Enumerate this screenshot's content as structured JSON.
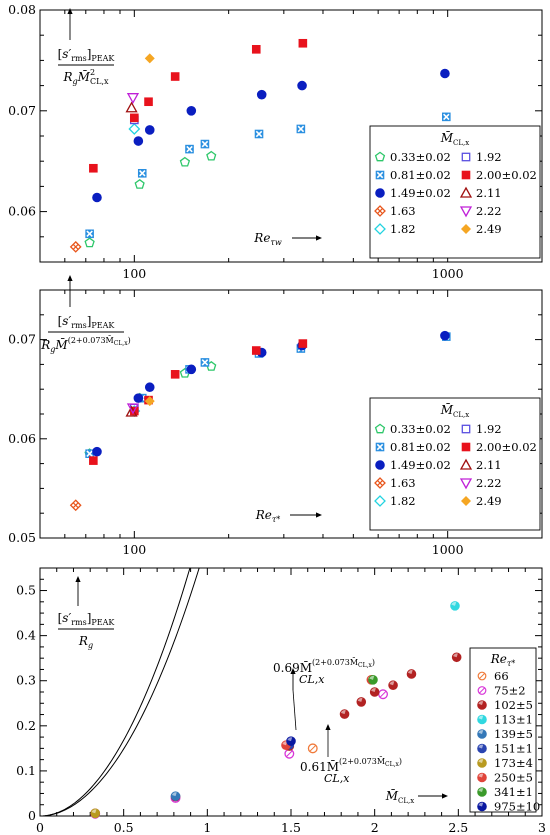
{
  "chart_data": [
    {
      "type": "scatter",
      "xscale": "log",
      "xlim": [
        50,
        2000
      ],
      "ylim": [
        0.055,
        0.08
      ],
      "xticks": [
        "100",
        "1000"
      ],
      "yticks": [
        "0.06",
        "0.07",
        "0.08"
      ],
      "ylabel": [
        "[s′rms]PEAK",
        "R",
        "g",
        "M̄",
        "2",
        "CL,x"
      ],
      "xlabel": [
        "Re",
        "τw"
      ],
      "legend_title": [
        "M̄",
        "CL,x"
      ],
      "series": [
        {
          "name": "0.33±0.02",
          "marker": "pentagon",
          "color": "#2ec76a",
          "x": [
            72,
            104,
            145,
            176
          ],
          "y": [
            0.0569,
            0.0627,
            0.0649,
            0.0655
          ]
        },
        {
          "name": "0.81±0.02",
          "marker": "square-cross",
          "color": "#2a8fe0",
          "x": [
            72,
            106,
            150,
            168,
            250,
            340,
            990
          ],
          "y": [
            0.0578,
            0.0638,
            0.0662,
            0.0667,
            0.0677,
            0.0682,
            0.0694
          ]
        },
        {
          "name": "1.49±0.02",
          "marker": "circle",
          "color": "#0a1ec0",
          "x": [
            76,
            103,
            112,
            152,
            255,
            343,
            980
          ],
          "y": [
            0.0614,
            0.067,
            0.0681,
            0.07,
            0.0716,
            0.0725,
            0.0737
          ]
        },
        {
          "name": "1.63",
          "marker": "diamond-cross",
          "color": "#e8561c",
          "x": [
            65
          ],
          "y": [
            0.0565
          ]
        },
        {
          "name": "1.82",
          "marker": "diamond-open",
          "color": "#22d3e0",
          "x": [
            100
          ],
          "y": [
            0.0682
          ]
        },
        {
          "name": "1.92",
          "marker": "square-open",
          "color": "#5a4fe0",
          "x": [
            100
          ],
          "y": [
            0.0691
          ]
        },
        {
          "name": "2.00±0.02",
          "marker": "square",
          "color": "#e8121c",
          "x": [
            74,
            100,
            111,
            135,
            245,
            345
          ],
          "y": [
            0.0643,
            0.0693,
            0.0709,
            0.0734,
            0.0761,
            0.0767
          ]
        },
        {
          "name": "2.11",
          "marker": "triangle-up",
          "color": "#a01010",
          "x": [
            98
          ],
          "y": [
            0.0703
          ]
        },
        {
          "name": "2.22",
          "marker": "triangle-down",
          "color": "#c020d8",
          "x": [
            99
          ],
          "y": [
            0.0713
          ]
        },
        {
          "name": "2.49",
          "marker": "diamond",
          "color": "#f5a623",
          "x": [
            112
          ],
          "y": [
            0.0752
          ]
        }
      ]
    },
    {
      "type": "scatter",
      "xscale": "log",
      "xlim": [
        50,
        2000
      ],
      "ylim": [
        0.05,
        0.075
      ],
      "xticks": [
        "100",
        "1000"
      ],
      "yticks": [
        "0.05",
        "0.06",
        "0.07"
      ],
      "ylabel": [
        "[s′rms]PEAK",
        "R",
        "g",
        "M̄",
        "(2+0.073M̄",
        "CL,x",
        ")"
      ],
      "xlabel": [
        "Re",
        "τ*"
      ],
      "legend_title": [
        "M̄",
        "CL,x"
      ],
      "series": [
        {
          "name": "0.33±0.02",
          "marker": "pentagon",
          "color": "#2ec76a",
          "x": [
            72,
            104,
            145,
            176
          ],
          "y": [
            0.0585,
            0.0641,
            0.0666,
            0.0673
          ]
        },
        {
          "name": "0.81±0.02",
          "marker": "square-cross",
          "color": "#2a8fe0",
          "x": [
            72,
            106,
            150,
            168,
            250,
            340,
            990
          ],
          "y": [
            0.0585,
            0.0641,
            0.067,
            0.0677,
            0.0686,
            0.0691,
            0.0703
          ]
        },
        {
          "name": "1.49±0.02",
          "marker": "circle",
          "color": "#0a1ec0",
          "x": [
            76,
            103,
            112,
            152,
            255,
            343,
            980
          ],
          "y": [
            0.0587,
            0.0641,
            0.0652,
            0.067,
            0.0687,
            0.0694,
            0.0704
          ]
        },
        {
          "name": "1.63",
          "marker": "diamond-cross",
          "color": "#e8561c",
          "x": [
            65
          ],
          "y": [
            0.0533
          ]
        },
        {
          "name": "1.82",
          "marker": "diamond-open",
          "color": "#22d3e0",
          "x": [
            100
          ],
          "y": [
            0.0628
          ]
        },
        {
          "name": "1.92",
          "marker": "square-open",
          "color": "#5a4fe0",
          "x": [
            100
          ],
          "y": [
            0.0631
          ]
        },
        {
          "name": "2.00±0.02",
          "marker": "square",
          "color": "#e8121c",
          "x": [
            74,
            100,
            111,
            135,
            245,
            345
          ],
          "y": [
            0.0578,
            0.0628,
            0.0639,
            0.0665,
            0.0689,
            0.0696
          ]
        },
        {
          "name": "2.11",
          "marker": "triangle-up",
          "color": "#a01010",
          "x": [
            98
          ],
          "y": [
            0.0627
          ]
        },
        {
          "name": "2.22",
          "marker": "triangle-down",
          "color": "#c020d8",
          "x": [
            99
          ],
          "y": [
            0.0631
          ]
        },
        {
          "name": "2.49",
          "marker": "diamond",
          "color": "#f5a623",
          "x": [
            112
          ],
          "y": [
            0.0638
          ]
        }
      ]
    },
    {
      "type": "scatter",
      "xlim": [
        0,
        3
      ],
      "ylim": [
        0,
        0.55
      ],
      "xticks": [
        "0",
        "0.5",
        "1",
        "1.5",
        "2",
        "2.5",
        "3"
      ],
      "yticks": [
        "0",
        "0.1",
        "0.2",
        "0.3",
        "0.4",
        "0.5"
      ],
      "ylabel": [
        "[s′rms]PEAK",
        "R",
        "g"
      ],
      "xlabel": [
        "M̄",
        "CL,x"
      ],
      "legend_title": [
        "Re",
        "τ*"
      ],
      "curves": [
        {
          "label": [
            "0.69M̄",
            "(2+0.073M̄",
            "CL,x",
            ")",
            "CL,x"
          ],
          "coef": 0.69
        },
        {
          "label": [
            "0.61M̄",
            "(2+0.073M̄",
            "CL,x",
            ")",
            "CL,x"
          ],
          "coef": 0.61
        }
      ],
      "series": [
        {
          "name": "66",
          "color": "#f07a3a",
          "x": [
            1.63
          ],
          "y": [
            0.15
          ]
        },
        {
          "name": "75±2",
          "color": "#d836d8",
          "x": [
            0.33,
            0.81,
            1.49,
            2.05
          ],
          "y": [
            0.005,
            0.04,
            0.138,
            0.27
          ]
        },
        {
          "name": "102±5",
          "color": "#b22222",
          "x": [
            0.33,
            0.81,
            1.49,
            1.82,
            1.92,
            2.0,
            2.11,
            2.22,
            2.49
          ],
          "y": [
            0.006,
            0.043,
            0.155,
            0.226,
            0.253,
            0.275,
            0.29,
            0.315,
            0.352
          ]
        },
        {
          "name": "113±1",
          "color": "#30d8e0",
          "x": [
            2.48
          ],
          "y": [
            0.466
          ]
        },
        {
          "name": "139±5",
          "color": "#3478b8",
          "x": [
            0.81
          ],
          "y": [
            0.044
          ]
        },
        {
          "name": "151±1",
          "color": "#2a44b0",
          "x": [
            1.49
          ],
          "y": [
            0.158
          ]
        },
        {
          "name": "173±4",
          "color": "#b89a20",
          "x": [
            0.33
          ],
          "y": [
            0.006
          ]
        },
        {
          "name": "250±5",
          "color": "#e0443a",
          "x": [
            1.47,
            1.98
          ],
          "y": [
            0.157,
            0.302
          ]
        },
        {
          "name": "341±1",
          "color": "#3a9a2a",
          "x": [
            1.99
          ],
          "y": [
            0.302
          ]
        },
        {
          "name": "975±10",
          "color": "#0a18a0",
          "x": [
            1.5
          ],
          "y": [
            0.166
          ]
        }
      ]
    }
  ]
}
